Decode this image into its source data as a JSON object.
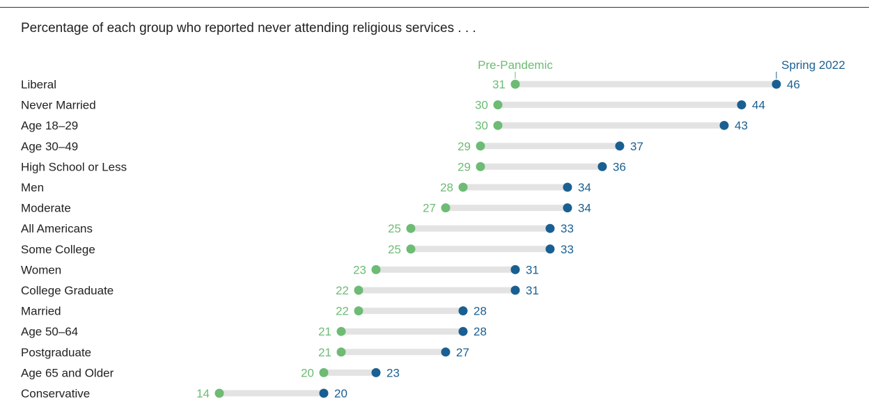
{
  "title": "Percentage of each group who reported never attending religious services . . .",
  "colors": {
    "pre": "#6dbb74",
    "post": "#1a5f91",
    "bar": "#e3e3e3"
  },
  "chart_data": {
    "type": "dumbbell",
    "title": "Percentage of each group who reported never attending religious services . . .",
    "series": [
      {
        "name": "Pre-Pandemic",
        "values": [
          31,
          30,
          30,
          29,
          29,
          28,
          27,
          25,
          25,
          23,
          22,
          22,
          21,
          21,
          20,
          14
        ]
      },
      {
        "name": "Spring 2022",
        "values": [
          46,
          44,
          43,
          37,
          36,
          34,
          34,
          33,
          33,
          31,
          31,
          28,
          28,
          27,
          23,
          20
        ]
      }
    ],
    "categories": [
      "Liberal",
      "Never Married",
      "Age 18–29",
      "Age 30–49",
      "High School or Less",
      "Men",
      "Moderate",
      "All Americans",
      "Some College",
      "Women",
      "College Graduate",
      "Married",
      "Age 50–64",
      "Postgraduate",
      "Age 65 and Older",
      "Conservative"
    ],
    "grid": false,
    "legend": "direct labels on top row"
  }
}
